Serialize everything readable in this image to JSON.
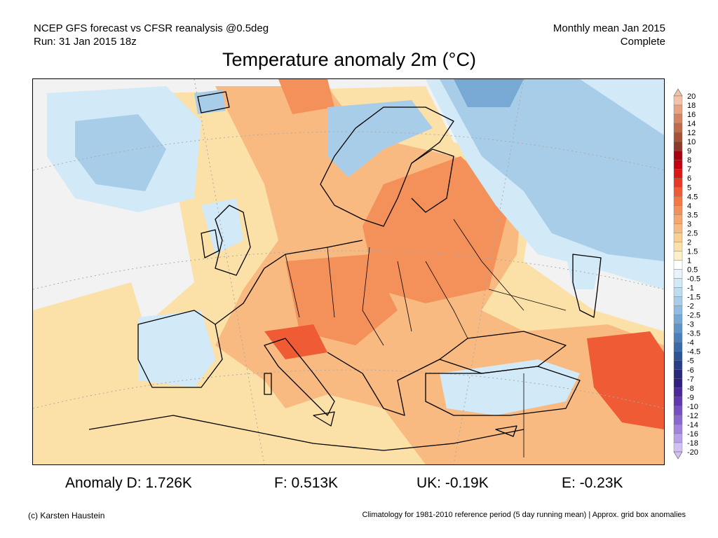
{
  "header": {
    "model_line": "NCEP GFS forecast vs CFSR reanalysis @0.5deg",
    "run_line": "Run: 31 Jan 2015 18z",
    "period_line": "Monthly mean Jan 2015",
    "status_line": "Complete"
  },
  "title": "Temperature anomaly 2m (°C)",
  "colorbar": {
    "levels": [
      "20",
      "18",
      "16",
      "14",
      "12",
      "10",
      "9",
      "8",
      "7",
      "6",
      "5",
      "4.5",
      "4",
      "3.5",
      "3",
      "2.5",
      "2",
      "1.5",
      "1",
      "0.5",
      "-0.5",
      "-1",
      "-1.5",
      "-2",
      "-2.5",
      "-3",
      "-3.5",
      "-4",
      "-4.5",
      "-5",
      "-6",
      "-7",
      "-8",
      "-9",
      "-10",
      "-12",
      "-14",
      "-16",
      "-18",
      "-20"
    ],
    "colors": [
      "#f4c2a8",
      "#e8a383",
      "#d68562",
      "#c06b4a",
      "#a65239",
      "#8e3a2a",
      "#a8000e",
      "#c40012",
      "#d81a16",
      "#e63a26",
      "#ee5b34",
      "#f27945",
      "#f4905a",
      "#f6a66e",
      "#f8ba80",
      "#fad092",
      "#fbe1a8",
      "#fdf0c8",
      "#ffffff",
      "#e6f3fb",
      "#d2e9f7",
      "#bedcf0",
      "#a8cde8",
      "#90bcdf",
      "#78a9d4",
      "#6195c8",
      "#4c80ba",
      "#3b6aaa",
      "#2e5399",
      "#283e88",
      "#262a7a",
      "#322080",
      "#4a2a9a",
      "#6038b0",
      "#7650c2",
      "#8a68d0",
      "#a084de",
      "#b8a0ea",
      "#d0c0f4"
    ]
  },
  "map_colors": {
    "ocean": "#f2f2f2",
    "warm_light": "#fbe1a8",
    "warm": "#f8ba80",
    "warm_strong": "#f4905a",
    "hot": "#ee5b34",
    "cold_light": "#d2e9f7",
    "cold": "#a8cde8",
    "cold_strong": "#78a9d4",
    "coast": "#000000"
  },
  "stats": {
    "d": "Anomaly D: 1.726K",
    "f": "F: 0.513K",
    "uk": "UK: -0.19K",
    "e": "E: -0.23K"
  },
  "footer": {
    "credit": "(c) Karsten Haustein",
    "note": "Climatology for 1981-2010 reference period (5 day running mean) | Approx. grid box anomalies"
  }
}
